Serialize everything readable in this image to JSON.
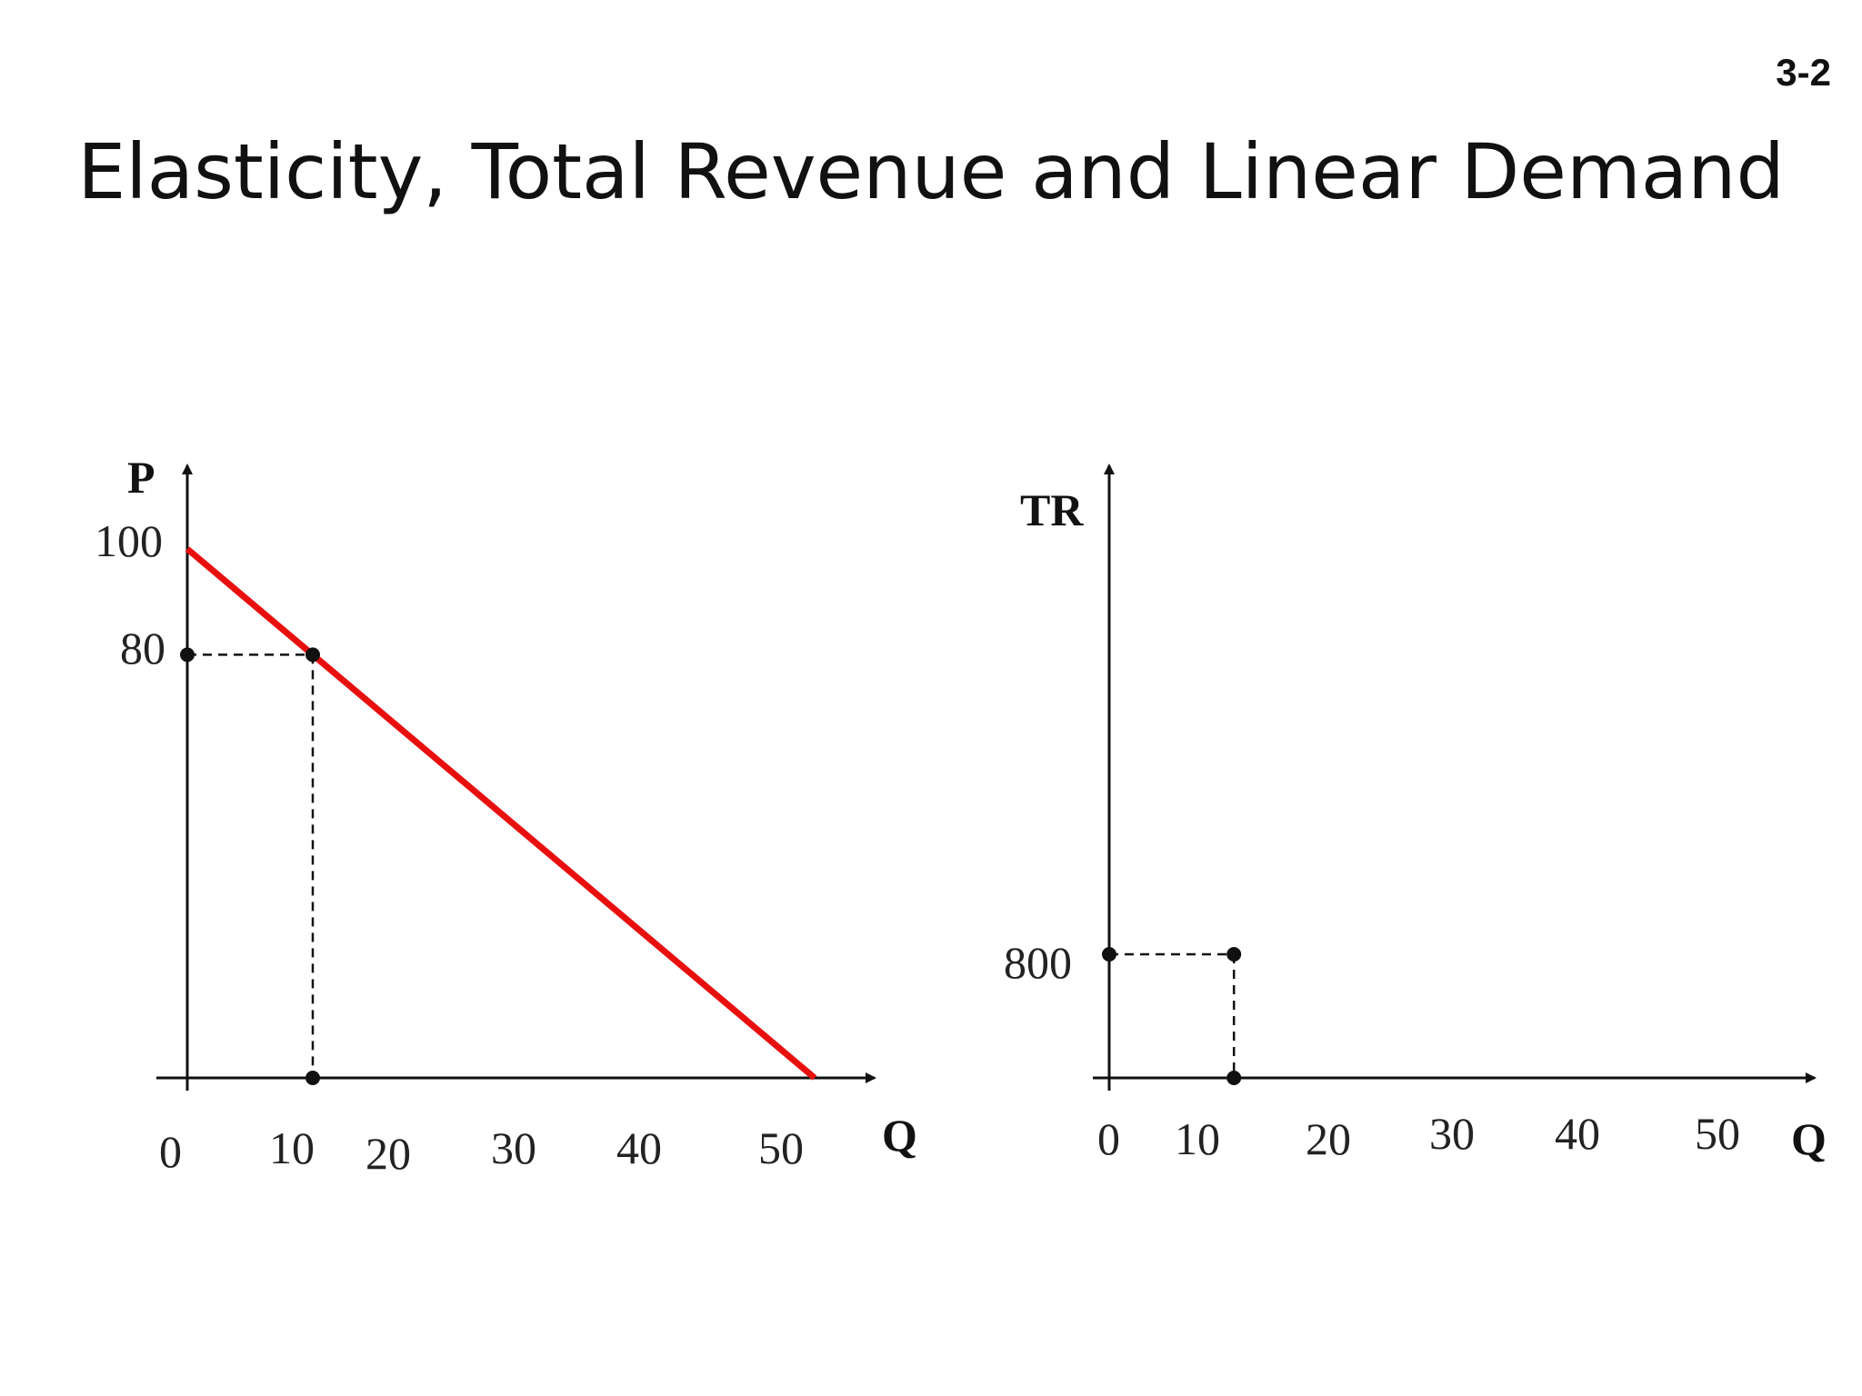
{
  "slide": {
    "number": "3-2",
    "title": "Elasticity, Total Revenue and Linear Demand"
  },
  "colors": {
    "demand_line": "#e8100f",
    "axes": "#111111",
    "point": "#111111"
  },
  "chart_data": [
    {
      "type": "line",
      "ylabel": "P",
      "xlabel": "Q",
      "xlim": [
        0,
        50
      ],
      "ylim": [
        0,
        100
      ],
      "x_tick_labels": [
        "0",
        "10",
        "20",
        "30",
        "40",
        "50"
      ],
      "y_tick_labels": [
        "100",
        "80"
      ],
      "series": [
        {
          "points": [
            [
              0,
              100
            ],
            [
              50,
              0
            ]
          ]
        }
      ],
      "highlight_points": [
        [
          0,
          80
        ],
        [
          10,
          80
        ],
        [
          10,
          0
        ]
      ],
      "guides": [
        [
          [
            0,
            80
          ],
          [
            10,
            80
          ]
        ],
        [
          [
            10,
            80
          ],
          [
            10,
            0
          ]
        ]
      ]
    },
    {
      "type": "scatter",
      "ylabel": "TR",
      "xlabel": "Q",
      "xlim": [
        0,
        50
      ],
      "x_tick_labels": [
        "0",
        "10",
        "20",
        "30",
        "40",
        "50"
      ],
      "y_tick_labels": [
        "800"
      ],
      "highlight_points": [
        [
          0,
          800
        ],
        [
          10,
          800
        ],
        [
          10,
          0
        ]
      ],
      "guides": [
        [
          [
            0,
            800
          ],
          [
            10,
            800
          ]
        ],
        [
          [
            10,
            800
          ],
          [
            10,
            0
          ]
        ]
      ]
    }
  ]
}
